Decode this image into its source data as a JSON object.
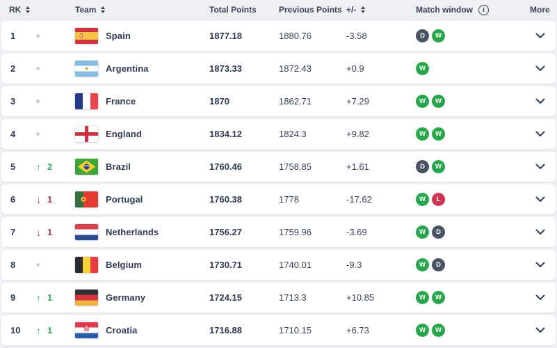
{
  "table": {
    "columns": {
      "rk": "RK",
      "team": "Team",
      "total_points": "Total Points",
      "previous_points": "Previous Points",
      "plus_minus": "+/-",
      "match_window": "Match window",
      "more": "More"
    },
    "rows": [
      {
        "rank": "1",
        "movement": "none",
        "movement_value": "",
        "team": "Spain",
        "flag": "es",
        "total_points": "1877.18",
        "previous_points": "1880.76",
        "plus_minus": "-3.58",
        "match_window": [
          "D",
          "W"
        ]
      },
      {
        "rank": "2",
        "movement": "none",
        "movement_value": "",
        "team": "Argentina",
        "flag": "ar",
        "total_points": "1873.33",
        "previous_points": "1872.43",
        "plus_minus": "+0.9",
        "match_window": [
          "W"
        ]
      },
      {
        "rank": "3",
        "movement": "none",
        "movement_value": "",
        "team": "France",
        "flag": "fr",
        "total_points": "1870",
        "previous_points": "1862.71",
        "plus_minus": "+7.29",
        "match_window": [
          "W",
          "W"
        ]
      },
      {
        "rank": "4",
        "movement": "none",
        "movement_value": "",
        "team": "England",
        "flag": "en",
        "total_points": "1834.12",
        "previous_points": "1824.3",
        "plus_minus": "+9.82",
        "match_window": [
          "W",
          "W"
        ]
      },
      {
        "rank": "5",
        "movement": "up",
        "movement_value": "2",
        "team": "Brazil",
        "flag": "br",
        "total_points": "1760.46",
        "previous_points": "1758.85",
        "plus_minus": "+1.61",
        "match_window": [
          "D",
          "W"
        ]
      },
      {
        "rank": "6",
        "movement": "down",
        "movement_value": "1",
        "team": "Portugal",
        "flag": "pt",
        "total_points": "1760.38",
        "previous_points": "1778",
        "plus_minus": "-17.62",
        "match_window": [
          "W",
          "L"
        ]
      },
      {
        "rank": "7",
        "movement": "down",
        "movement_value": "1",
        "team": "Netherlands",
        "flag": "nl",
        "total_points": "1756.27",
        "previous_points": "1759.96",
        "plus_minus": "-3.69",
        "match_window": [
          "W",
          "D"
        ]
      },
      {
        "rank": "8",
        "movement": "none",
        "movement_value": "",
        "team": "Belgium",
        "flag": "be",
        "total_points": "1730.71",
        "previous_points": "1740.01",
        "plus_minus": "-9.3",
        "match_window": [
          "W",
          "D"
        ]
      },
      {
        "rank": "9",
        "movement": "up",
        "movement_value": "1",
        "team": "Germany",
        "flag": "de",
        "total_points": "1724.15",
        "previous_points": "1713.3",
        "plus_minus": "+10.85",
        "match_window": [
          "W",
          "W"
        ]
      },
      {
        "rank": "10",
        "movement": "up",
        "movement_value": "1",
        "team": "Croatia",
        "flag": "hr",
        "total_points": "1716.88",
        "previous_points": "1710.15",
        "plus_minus": "+6.73",
        "match_window": [
          "W",
          "W"
        ]
      }
    ]
  },
  "colors": {
    "win": "#27a64c",
    "draw": "#4a5364",
    "loss": "#d23351",
    "rank_up": "#3aa76d",
    "rank_down": "#b13657"
  },
  "icons": {
    "sort": "sort-arrows-icon",
    "info": "info-icon",
    "chevron": "chevron-down-icon",
    "info_glyph": "i"
  }
}
